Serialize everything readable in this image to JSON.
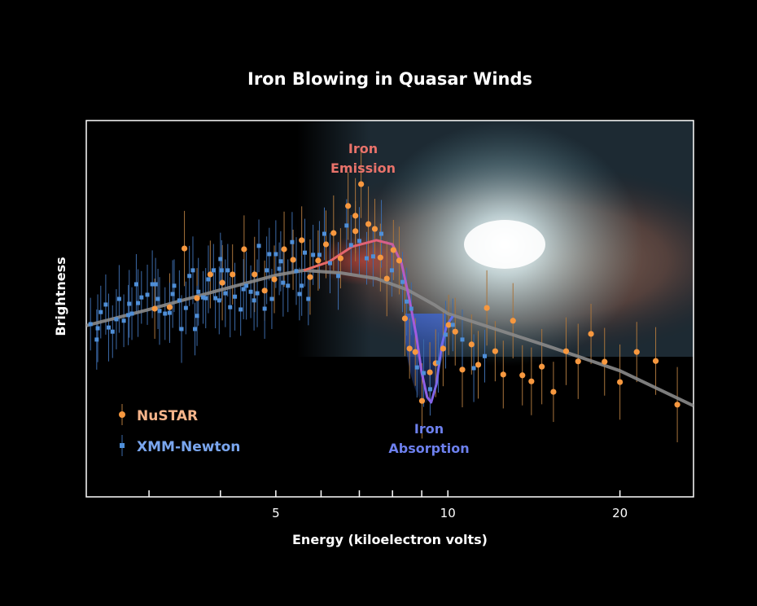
{
  "chart_data": {
    "type": "scatter",
    "title": "Iron Blowing in Quasar Winds",
    "xlabel": "Energy (kiloelectron volts)",
    "ylabel": "Brightness",
    "xscale": "log",
    "xlim": [
      2.33,
      26.9
    ],
    "ylim": [
      0,
      100
    ],
    "x_ticks": [
      3,
      4,
      5,
      6,
      7,
      8,
      9,
      10,
      20
    ],
    "x_tick_labels": [
      {
        "value": 5,
        "label": "5"
      },
      {
        "value": 10,
        "label": "10"
      },
      {
        "value": 20,
        "label": "20"
      }
    ],
    "grid": false,
    "legend_position": "bottom-left",
    "colors": {
      "nustar": "#f7983f",
      "nustar_text": "#f5b48a",
      "xmm": "#4f8fd8",
      "xmm_text": "#7aa6ee",
      "model": "#8a8a8a",
      "emission": "#e86a5e",
      "absorption": "#5b6ff0",
      "frame": "#ffffff"
    },
    "annotations": [
      {
        "lines": [
          "Iron",
          "Emission"
        ],
        "color": "#e8726a"
      },
      {
        "lines": [
          "Iron",
          "Absorption"
        ],
        "color": "#6d80ee"
      }
    ],
    "series": [
      {
        "name": "NuSTAR",
        "marker": "circle",
        "error": 8,
        "points": [
          [
            3.07,
            50.0
          ],
          [
            3.26,
            50.4
          ],
          [
            3.46,
            66.0
          ],
          [
            3.64,
            52.8
          ],
          [
            3.84,
            59.1
          ],
          [
            4.03,
            56.9
          ],
          [
            4.2,
            59.1
          ],
          [
            4.4,
            65.8
          ],
          [
            4.59,
            59.1
          ],
          [
            4.78,
            54.8
          ],
          [
            4.97,
            57.8
          ],
          [
            5.17,
            65.8
          ],
          [
            5.36,
            63.0
          ],
          [
            5.55,
            68.2
          ],
          [
            5.74,
            58.4
          ],
          [
            5.93,
            62.8
          ],
          [
            6.12,
            67.1
          ],
          [
            6.31,
            70.1
          ],
          [
            6.49,
            63.4
          ],
          [
            6.69,
            77.3
          ],
          [
            6.89,
            74.7
          ],
          [
            6.89,
            70.6
          ],
          [
            7.05,
            83.1
          ],
          [
            7.26,
            72.5
          ],
          [
            7.45,
            71.2
          ],
          [
            7.62,
            63.6
          ],
          [
            7.82,
            58.0
          ],
          [
            8.03,
            65.6
          ],
          [
            8.22,
            62.8
          ],
          [
            8.41,
            47.4
          ],
          [
            8.57,
            39.4
          ],
          [
            8.77,
            38.5
          ],
          [
            9.01,
            25.5
          ],
          [
            9.3,
            33.1
          ],
          [
            9.52,
            35.5
          ],
          [
            9.81,
            39.4
          ],
          [
            10.03,
            45.7
          ],
          [
            10.3,
            43.9
          ],
          [
            10.6,
            33.8
          ],
          [
            11.0,
            40.5
          ],
          [
            11.3,
            35.1
          ],
          [
            11.7,
            50.2
          ],
          [
            12.1,
            38.7
          ],
          [
            12.5,
            32.5
          ],
          [
            13.0,
            46.8
          ],
          [
            13.5,
            32.3
          ],
          [
            14.0,
            30.7
          ],
          [
            14.6,
            34.6
          ],
          [
            15.3,
            27.9
          ],
          [
            16.1,
            38.7
          ],
          [
            16.9,
            36.0
          ],
          [
            17.8,
            43.3
          ],
          [
            18.8,
            35.9
          ],
          [
            20.0,
            30.5
          ],
          [
            21.4,
            38.5
          ],
          [
            23.1,
            36.1
          ],
          [
            25.2,
            24.5
          ]
        ]
      },
      {
        "name": "XMM-Newton",
        "marker": "square",
        "error": 7,
        "points": [
          [
            2.37,
            45.9
          ],
          [
            2.43,
            41.8
          ],
          [
            2.44,
            44.8
          ],
          [
            2.47,
            49.1
          ],
          [
            2.52,
            51.1
          ],
          [
            2.55,
            45.0
          ],
          [
            2.59,
            43.9
          ],
          [
            2.63,
            47.2
          ],
          [
            2.66,
            52.6
          ],
          [
            2.71,
            46.8
          ],
          [
            2.76,
            48.3
          ],
          [
            2.77,
            51.3
          ],
          [
            2.8,
            48.7
          ],
          [
            2.85,
            56.5
          ],
          [
            2.87,
            51.5
          ],
          [
            2.91,
            53.0
          ],
          [
            2.98,
            53.7
          ],
          [
            3.04,
            56.5
          ],
          [
            3.08,
            56.5
          ],
          [
            3.11,
            52.6
          ],
          [
            3.13,
            49.4
          ],
          [
            3.2,
            48.7
          ],
          [
            3.26,
            48.9
          ],
          [
            3.3,
            53.9
          ],
          [
            3.32,
            56.1
          ],
          [
            3.39,
            52.2
          ],
          [
            3.42,
            44.6
          ],
          [
            3.48,
            50.2
          ],
          [
            3.53,
            58.7
          ],
          [
            3.58,
            60.2
          ],
          [
            3.61,
            44.6
          ],
          [
            3.64,
            48.1
          ],
          [
            3.66,
            54.5
          ],
          [
            3.73,
            53.0
          ],
          [
            3.77,
            52.8
          ],
          [
            3.81,
            57.8
          ],
          [
            3.89,
            60.2
          ],
          [
            3.92,
            52.8
          ],
          [
            3.98,
            52.2
          ],
          [
            4.0,
            63.2
          ],
          [
            4.02,
            60.2
          ],
          [
            4.08,
            54.1
          ],
          [
            4.12,
            60.2
          ],
          [
            4.16,
            50.4
          ],
          [
            4.24,
            53.2
          ],
          [
            4.34,
            49.8
          ],
          [
            4.39,
            55.2
          ],
          [
            4.44,
            56.1
          ],
          [
            4.52,
            54.5
          ],
          [
            4.58,
            52.2
          ],
          [
            4.64,
            54.1
          ],
          [
            4.67,
            66.7
          ],
          [
            4.78,
            50.0
          ],
          [
            4.82,
            60.2
          ],
          [
            4.87,
            64.5
          ],
          [
            4.92,
            52.6
          ],
          [
            5.0,
            64.5
          ],
          [
            5.07,
            60.6
          ],
          [
            5.1,
            62.6
          ],
          [
            5.15,
            56.9
          ],
          [
            5.25,
            56.1
          ],
          [
            5.34,
            67.7
          ],
          [
            5.43,
            60.0
          ],
          [
            5.5,
            53.9
          ],
          [
            5.55,
            56.1
          ],
          [
            5.62,
            64.9
          ],
          [
            5.7,
            52.6
          ],
          [
            5.81,
            64.3
          ],
          [
            5.96,
            64.3
          ],
          [
            6.08,
            69.9
          ],
          [
            6.22,
            62.1
          ],
          [
            6.43,
            58.7
          ],
          [
            6.65,
            72.1
          ],
          [
            6.77,
            66.9
          ],
          [
            7.0,
            68.0
          ],
          [
            7.21,
            63.4
          ],
          [
            7.4,
            63.9
          ],
          [
            7.65,
            69.9
          ],
          [
            7.98,
            60.2
          ],
          [
            8.33,
            57.1
          ],
          [
            8.47,
            51.9
          ],
          [
            8.63,
            50.0
          ],
          [
            8.83,
            34.4
          ],
          [
            9.07,
            32.9
          ],
          [
            9.31,
            28.6
          ],
          [
            9.62,
            35.7
          ],
          [
            9.91,
            43.1
          ],
          [
            10.2,
            45.7
          ],
          [
            10.6,
            41.8
          ],
          [
            11.1,
            34.2
          ],
          [
            11.6,
            37.4
          ]
        ]
      }
    ],
    "model_continuum": [
      [
        2.33,
        45.5
      ],
      [
        3,
        49.8
      ],
      [
        4,
        55
      ],
      [
        5,
        58.9
      ],
      [
        5.6,
        60.2
      ],
      [
        6.5,
        59.5
      ],
      [
        7.5,
        58
      ],
      [
        8.5,
        55
      ],
      [
        9.5,
        50.9
      ],
      [
        10,
        48.7
      ],
      [
        15,
        40
      ],
      [
        20,
        33.5
      ],
      [
        26.9,
        24.2
      ]
    ],
    "model_with_iron_lines": [
      [
        5.6,
        60.2
      ],
      [
        6.2,
        62.5
      ],
      [
        6.8,
        66.5
      ],
      [
        7.5,
        68.2
      ],
      [
        8.0,
        67.1
      ],
      [
        8.3,
        62
      ],
      [
        8.55,
        53
      ],
      [
        8.8,
        43
      ],
      [
        9.0,
        33
      ],
      [
        9.2,
        26.5
      ],
      [
        9.35,
        25.1
      ],
      [
        9.55,
        30
      ],
      [
        9.75,
        40
      ],
      [
        9.95,
        45.5
      ],
      [
        10.2,
        48
      ]
    ]
  }
}
